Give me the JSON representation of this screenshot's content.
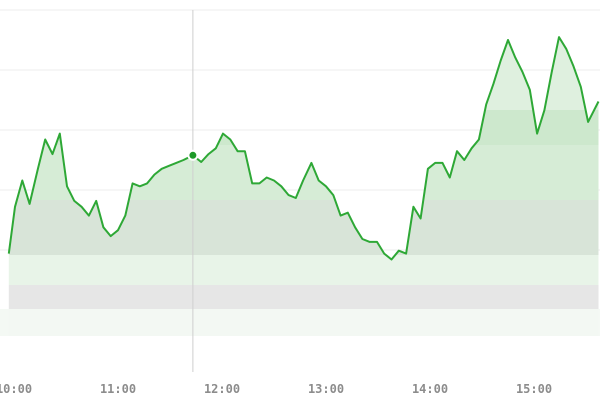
{
  "chart_data": {
    "type": "area",
    "title": "",
    "xlabel": "",
    "ylabel": "",
    "x_ticks": [
      {
        "label": "10:00",
        "hour": 10
      },
      {
        "label": "11:00",
        "hour": 11
      },
      {
        "label": "12:00",
        "hour": 12
      },
      {
        "label": "13:00",
        "hour": 13
      },
      {
        "label": "14:00",
        "hour": 14
      },
      {
        "label": "15:00",
        "hour": 15
      }
    ],
    "xlim": [
      9.95,
      15.62
    ],
    "ylim": [
      0,
      100
    ],
    "grid": true,
    "legend": "none",
    "hover_marker": {
      "hour": 11.72,
      "value": 55.6
    },
    "series": [
      {
        "color": "#2ea836",
        "fill_color": "#c8e8c8",
        "points": [
          [
            9.95,
            22
          ],
          [
            10.01,
            38
          ],
          [
            10.08,
            47
          ],
          [
            10.15,
            39
          ],
          [
            10.23,
            51
          ],
          [
            10.3,
            61
          ],
          [
            10.37,
            56
          ],
          [
            10.44,
            63
          ],
          [
            10.51,
            45
          ],
          [
            10.58,
            40
          ],
          [
            10.65,
            38
          ],
          [
            10.72,
            35
          ],
          [
            10.79,
            40
          ],
          [
            10.86,
            31
          ],
          [
            10.93,
            28
          ],
          [
            11.0,
            30
          ],
          [
            11.07,
            35
          ],
          [
            11.14,
            46
          ],
          [
            11.21,
            45
          ],
          [
            11.28,
            46
          ],
          [
            11.35,
            49
          ],
          [
            11.42,
            51
          ],
          [
            11.49,
            52
          ],
          [
            11.56,
            53
          ],
          [
            11.63,
            54
          ],
          [
            11.72,
            55.6
          ],
          [
            11.8,
            53.3
          ],
          [
            11.87,
            56
          ],
          [
            11.94,
            58
          ],
          [
            12.01,
            63
          ],
          [
            12.08,
            61
          ],
          [
            12.15,
            57
          ],
          [
            12.22,
            57
          ],
          [
            12.29,
            46
          ],
          [
            12.36,
            46
          ],
          [
            12.43,
            48
          ],
          [
            12.5,
            47
          ],
          [
            12.57,
            45
          ],
          [
            12.64,
            42
          ],
          [
            12.71,
            41
          ],
          [
            12.78,
            47
          ],
          [
            12.86,
            53
          ],
          [
            12.93,
            47
          ],
          [
            13.0,
            45
          ],
          [
            13.07,
            42
          ],
          [
            13.14,
            35
          ],
          [
            13.21,
            36
          ],
          [
            13.28,
            31
          ],
          [
            13.35,
            27
          ],
          [
            13.42,
            26
          ],
          [
            13.49,
            26
          ],
          [
            13.56,
            22
          ],
          [
            13.63,
            20
          ],
          [
            13.7,
            23
          ],
          [
            13.77,
            22
          ],
          [
            13.84,
            38
          ],
          [
            13.91,
            34
          ],
          [
            13.98,
            51
          ],
          [
            14.05,
            53
          ],
          [
            14.12,
            53
          ],
          [
            14.19,
            48
          ],
          [
            14.26,
            57
          ],
          [
            14.33,
            54
          ],
          [
            14.4,
            58
          ],
          [
            14.47,
            61
          ],
          [
            14.54,
            73
          ],
          [
            14.61,
            80
          ],
          [
            14.68,
            88
          ],
          [
            14.75,
            95
          ],
          [
            14.82,
            89
          ],
          [
            14.89,
            84
          ],
          [
            14.96,
            78
          ],
          [
            15.03,
            63
          ],
          [
            15.1,
            71
          ],
          [
            15.17,
            84
          ],
          [
            15.24,
            96
          ],
          [
            15.31,
            92
          ],
          [
            15.38,
            86
          ],
          [
            15.45,
            79
          ],
          [
            15.52,
            67
          ],
          [
            15.62,
            74
          ]
        ]
      }
    ]
  }
}
